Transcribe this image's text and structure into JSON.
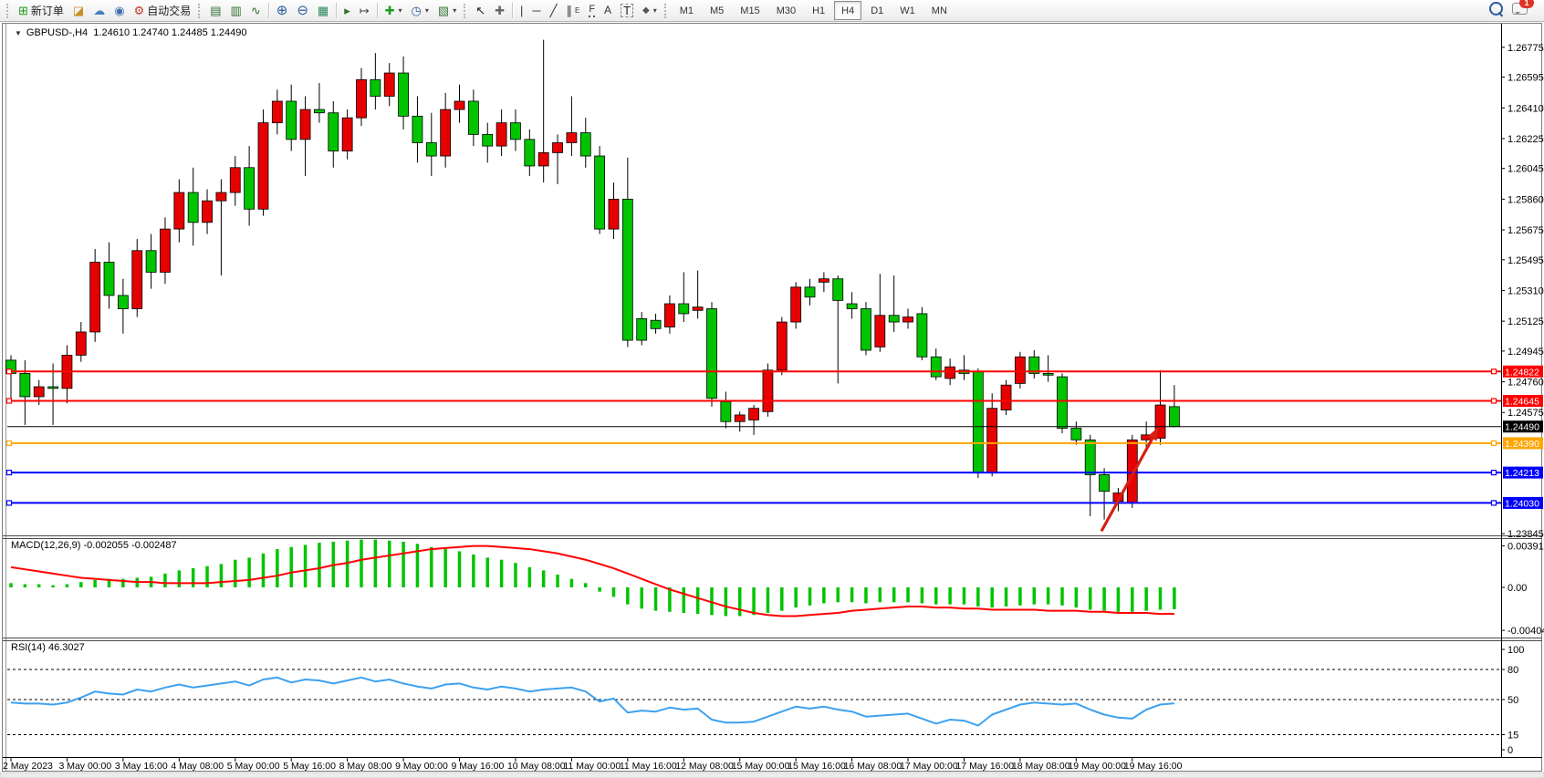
{
  "toolbar": {
    "new_order_label": "新订单",
    "autotrade_label": "自动交易",
    "icons": {
      "new_order": "⊞",
      "styler": "◪",
      "publish": "☁",
      "sound": "◉",
      "autotrade": "⚙",
      "bar_chart": "▤",
      "candle_chart": "▥",
      "line_chart": "∿",
      "zoom_in": "⊕",
      "zoom_out": "⊖",
      "tile_windows": "▦",
      "auto_scroll": "▸",
      "chart_shift": "↦",
      "indicators": "✚",
      "periods": "◷",
      "templates": "▧",
      "cursor": "↖",
      "crosshair": "✚",
      "vline": "|",
      "hline": "─",
      "trendline": "╱",
      "channel": "∥",
      "channel_sub": "E",
      "fibonacci": "F",
      "text": "A",
      "label": "T",
      "shapes": "◆",
      "caret": "▾"
    },
    "timeframes": [
      "M1",
      "M5",
      "M15",
      "M30",
      "H1",
      "H4",
      "D1",
      "W1",
      "MN"
    ],
    "active_timeframe": "H4",
    "notification_count": "1"
  },
  "chart": {
    "symbol_title": "GBPUSD-,H4",
    "title_ohlc": "1.24610 1.24740 1.24485 1.24490",
    "collapse_glyph": "▼"
  },
  "indicators": {
    "macd_name": "MACD(12,26,9)",
    "macd_values": "-0.002055 -0.002487",
    "rsi_name": "RSI(14)",
    "rsi_value": "46.3027"
  },
  "colors": {
    "bull": "#e60000",
    "bear": "#00c400",
    "wick": "#000000",
    "level_red": "#ff0000",
    "level_blue": "#0000ff",
    "level_orange": "#ffa500",
    "bid_line": "#000000",
    "macd_hist": "#00c400",
    "macd_signal": "#ff0000",
    "rsi_line": "#3da1f0",
    "arrow": "#d81e10"
  },
  "chart_data": [
    {
      "type": "candlestick",
      "title": "GBPUSD-,H4",
      "last_ohlc": [
        1.2461,
        1.2474,
        1.24485,
        1.2449
      ],
      "ylim": [
        1.2384,
        1.2684
      ],
      "up_color": "#e60000",
      "down_color": "#00c400",
      "y_ticks": [
        "1.26775",
        "1.26595",
        "1.26410",
        "1.26225",
        "1.26045",
        "1.25860",
        "1.25675",
        "1.25495",
        "1.25310",
        "1.25125",
        "1.24945",
        "1.24760",
        "1.24575",
        "1.23845"
      ],
      "x_tick_every": 4,
      "x_tick_labels": [
        "2 May 2023",
        "3 May 00:00",
        "3 May 16:00",
        "4 May 08:00",
        "5 May 00:00",
        "5 May 16:00",
        "8 May 08:00",
        "9 May 00:00",
        "9 May 16:00",
        "10 May 08:00",
        "11 May 00:00",
        "11 May 16:00",
        "12 May 08:00",
        "15 May 00:00",
        "15 May 16:00",
        "16 May 08:00",
        "17 May 00:00",
        "17 May 16:00",
        "18 May 08:00",
        "19 May 00:00",
        "19 May 16:00"
      ],
      "levels": [
        {
          "price": 1.24822,
          "label": "1.24822",
          "color": "#ff0000",
          "width": 2
        },
        {
          "price": 1.24645,
          "label": "1.24645",
          "color": "#ff0000",
          "width": 2
        },
        {
          "price": 1.2449,
          "label": "1.24490",
          "color": "#000000",
          "width": 1
        },
        {
          "price": 1.2439,
          "label": "1.24390",
          "color": "#ffa500",
          "width": 2
        },
        {
          "price": 1.24213,
          "label": "1.24213",
          "color": "#0000ff",
          "width": 2
        },
        {
          "price": 1.2403,
          "label": "1.24030",
          "color": "#0000ff",
          "width": 2
        }
      ],
      "annotation_arrow": {
        "from": {
          "index": 77.8,
          "price": 1.2386
        },
        "to": {
          "index": 81.9,
          "price": 1.2449
        },
        "color": "#d81e10"
      },
      "candles": [
        [
          1.2489,
          1.2492,
          1.2463,
          1.2481
        ],
        [
          1.2481,
          1.2489,
          1.245,
          1.2467
        ],
        [
          1.2467,
          1.2477,
          1.2462,
          1.2473
        ],
        [
          1.2473,
          1.2487,
          1.245,
          1.2472
        ],
        [
          1.2472,
          1.2498,
          1.2463,
          1.2492
        ],
        [
          1.2492,
          1.2512,
          1.2488,
          1.2506
        ],
        [
          1.2506,
          1.2556,
          1.25,
          1.2548
        ],
        [
          1.2548,
          1.256,
          1.252,
          1.2528
        ],
        [
          1.2528,
          1.2538,
          1.2505,
          1.252
        ],
        [
          1.252,
          1.2562,
          1.2515,
          1.2555
        ],
        [
          1.2555,
          1.2565,
          1.2532,
          1.2542
        ],
        [
          1.2542,
          1.2575,
          1.2535,
          1.2568
        ],
        [
          1.2568,
          1.2598,
          1.256,
          1.259
        ],
        [
          1.259,
          1.2605,
          1.2558,
          1.2572
        ],
        [
          1.2572,
          1.2592,
          1.2565,
          1.2585
        ],
        [
          1.2585,
          1.2598,
          1.254,
          1.259
        ],
        [
          1.259,
          1.2612,
          1.2582,
          1.2605
        ],
        [
          1.2605,
          1.2618,
          1.257,
          1.258
        ],
        [
          1.258,
          1.264,
          1.2576,
          1.2632
        ],
        [
          1.2632,
          1.2652,
          1.2625,
          1.2645
        ],
        [
          1.2645,
          1.2655,
          1.2615,
          1.2622
        ],
        [
          1.2622,
          1.2648,
          1.26,
          1.264
        ],
        [
          1.264,
          1.2656,
          1.2632,
          1.2638
        ],
        [
          1.2638,
          1.2645,
          1.2605,
          1.2615
        ],
        [
          1.2615,
          1.264,
          1.261,
          1.2635
        ],
        [
          1.2635,
          1.2665,
          1.263,
          1.2658
        ],
        [
          1.2658,
          1.2674,
          1.264,
          1.2648
        ],
        [
          1.2648,
          1.2668,
          1.2642,
          1.2662
        ],
        [
          1.2662,
          1.2672,
          1.2628,
          1.2636
        ],
        [
          1.2636,
          1.2648,
          1.2608,
          1.262
        ],
        [
          1.262,
          1.2638,
          1.26,
          1.2612
        ],
        [
          1.2612,
          1.265,
          1.2605,
          1.264
        ],
        [
          1.264,
          1.2655,
          1.2632,
          1.2645
        ],
        [
          1.2645,
          1.2652,
          1.2618,
          1.2625
        ],
        [
          1.2625,
          1.2632,
          1.2608,
          1.2618
        ],
        [
          1.2618,
          1.264,
          1.2612,
          1.2632
        ],
        [
          1.2632,
          1.264,
          1.2615,
          1.2622
        ],
        [
          1.2622,
          1.2628,
          1.26,
          1.2606
        ],
        [
          1.2606,
          1.2682,
          1.2596,
          1.2614
        ],
        [
          1.2614,
          1.2625,
          1.2595,
          1.262
        ],
        [
          1.262,
          1.2648,
          1.2612,
          1.2626
        ],
        [
          1.2626,
          1.2635,
          1.2605,
          1.2612
        ],
        [
          1.2612,
          1.2618,
          1.2565,
          1.2568
        ],
        [
          1.2568,
          1.2596,
          1.2562,
          1.2586
        ],
        [
          1.2586,
          1.2611,
          1.2497,
          1.2501
        ],
        [
          1.2514,
          1.2518,
          1.2498,
          1.2501
        ],
        [
          1.2513,
          1.2517,
          1.2505,
          1.2508
        ],
        [
          1.2509,
          1.2528,
          1.2505,
          1.2523
        ],
        [
          1.2523,
          1.2542,
          1.2512,
          1.2517
        ],
        [
          1.2519,
          1.2543,
          1.2514,
          1.2521
        ],
        [
          1.252,
          1.2524,
          1.2461,
          1.2466
        ],
        [
          1.2464,
          1.247,
          1.2448,
          1.2452
        ],
        [
          1.2452,
          1.2458,
          1.2446,
          1.2456
        ],
        [
          1.2453,
          1.2462,
          1.2444,
          1.246
        ],
        [
          1.2458,
          1.2487,
          1.2455,
          1.2483
        ],
        [
          1.2483,
          1.2515,
          1.248,
          1.2512
        ],
        [
          1.2512,
          1.2536,
          1.2508,
          1.2533
        ],
        [
          1.2533,
          1.2538,
          1.2522,
          1.2527
        ],
        [
          1.2536,
          1.2542,
          1.253,
          1.2538
        ],
        [
          1.2538,
          1.254,
          1.2475,
          1.2525
        ],
        [
          1.2523,
          1.253,
          1.2514,
          1.252
        ],
        [
          1.252,
          1.2524,
          1.2492,
          1.2495
        ],
        [
          1.2497,
          1.2541,
          1.2494,
          1.2516
        ],
        [
          1.2516,
          1.254,
          1.2506,
          1.2512
        ],
        [
          1.2512,
          1.252,
          1.2508,
          1.2515
        ],
        [
          1.2517,
          1.2521,
          1.2489,
          1.2491
        ],
        [
          1.2491,
          1.2496,
          1.2477,
          1.2479
        ],
        [
          1.2478,
          1.249,
          1.2474,
          1.2485
        ],
        [
          1.2483,
          1.2492,
          1.2477,
          1.2481
        ],
        [
          1.2482,
          1.2484,
          1.2418,
          1.2421
        ],
        [
          1.2421,
          1.2469,
          1.2419,
          1.246
        ],
        [
          1.2459,
          1.2477,
          1.2456,
          1.2474
        ],
        [
          1.2475,
          1.2494,
          1.2472,
          1.2491
        ],
        [
          1.2491,
          1.2495,
          1.2478,
          1.2481
        ],
        [
          1.2481,
          1.2492,
          1.2476,
          1.248
        ],
        [
          1.2479,
          1.2481,
          1.2445,
          1.2448
        ],
        [
          1.2448,
          1.2452,
          1.2438,
          1.2441
        ],
        [
          1.2441,
          1.2444,
          1.2395,
          1.242
        ],
        [
          1.242,
          1.2424,
          1.2393,
          1.241
        ],
        [
          1.2404,
          1.2412,
          1.2398,
          1.2409
        ],
        [
          1.2403,
          1.2444,
          1.24,
          1.2441
        ],
        [
          1.2441,
          1.2452,
          1.2436,
          1.2444
        ],
        [
          1.2442,
          1.2483,
          1.2438,
          1.2462
        ],
        [
          1.2461,
          1.2474,
          1.24485,
          1.2449
        ]
      ]
    },
    {
      "type": "macd",
      "title": "MACD(12,26,9)",
      "current_values": [
        -0.002055,
        -0.002487
      ],
      "histogram_color": "#00c400",
      "signal_color": "#ff0000",
      "y_axis_labels": [
        "0.003914",
        "0.00",
        "-0.004049"
      ],
      "ylim": [
        -0.00455,
        0.00455
      ],
      "histogram": [
        0.0004,
        0.0003,
        0.0003,
        0.0002,
        0.0003,
        0.0005,
        0.0007,
        0.0008,
        0.0008,
        0.0009,
        0.001,
        0.0013,
        0.0016,
        0.0018,
        0.002,
        0.0022,
        0.0026,
        0.0028,
        0.0032,
        0.0036,
        0.0038,
        0.004,
        0.0042,
        0.0043,
        0.0044,
        0.0045,
        0.0045,
        0.0044,
        0.0043,
        0.0041,
        0.0038,
        0.0036,
        0.0034,
        0.0031,
        0.0028,
        0.0026,
        0.0023,
        0.0019,
        0.0016,
        0.0012,
        0.0008,
        0.0004,
        -0.0004,
        -0.0009,
        -0.0016,
        -0.002,
        -0.0022,
        -0.0023,
        -0.0024,
        -0.0025,
        -0.0026,
        -0.0027,
        -0.0027,
        -0.0026,
        -0.0024,
        -0.0022,
        -0.0019,
        -0.0017,
        -0.0015,
        -0.0014,
        -0.0014,
        -0.0015,
        -0.0014,
        -0.0014,
        -0.0014,
        -0.0015,
        -0.0016,
        -0.0016,
        -0.0016,
        -0.0018,
        -0.0019,
        -0.0018,
        -0.0017,
        -0.0016,
        -0.0016,
        -0.0017,
        -0.0019,
        -0.0021,
        -0.0022,
        -0.0023,
        -0.0023,
        -0.0022,
        -0.0021,
        -0.002055
      ],
      "signal": [
        0.0019,
        0.0017,
        0.0015,
        0.0013,
        0.0011,
        0.0009,
        0.0008,
        0.0007,
        0.0006,
        0.0005,
        0.0005,
        0.0004,
        0.0004,
        0.0004,
        0.0004,
        0.0005,
        0.0006,
        0.0007,
        0.0009,
        0.0011,
        0.0014,
        0.0016,
        0.0018,
        0.0021,
        0.0023,
        0.0026,
        0.0028,
        0.003,
        0.0032,
        0.0034,
        0.0036,
        0.0037,
        0.0038,
        0.0039,
        0.0039,
        0.0038,
        0.0037,
        0.0036,
        0.0034,
        0.0032,
        0.0029,
        0.0026,
        0.0022,
        0.0018,
        0.0013,
        0.0008,
        0.0003,
        -0.0002,
        -0.0006,
        -0.001,
        -0.0014,
        -0.0018,
        -0.0021,
        -0.0024,
        -0.0026,
        -0.0027,
        -0.0027,
        -0.0026,
        -0.0025,
        -0.0024,
        -0.0022,
        -0.0021,
        -0.002,
        -0.0019,
        -0.0018,
        -0.0018,
        -0.0019,
        -0.0019,
        -0.002,
        -0.002,
        -0.0021,
        -0.0021,
        -0.0021,
        -0.0021,
        -0.0022,
        -0.0022,
        -0.0022,
        -0.0023,
        -0.0023,
        -0.0024,
        -0.0024,
        -0.0024,
        -0.0025,
        -0.002487
      ]
    },
    {
      "type": "line",
      "title": "RSI(14)",
      "current_value": 46.3027,
      "line_color": "#3da1f0",
      "ylim": [
        0,
        100
      ],
      "dashed_levels": [
        80,
        50,
        15
      ],
      "y_axis_labels": [
        "100",
        "80",
        "50",
        "15",
        "0"
      ],
      "values": [
        47,
        46,
        46,
        45,
        47,
        52,
        58,
        56,
        55,
        60,
        58,
        62,
        65,
        62,
        64,
        66,
        68,
        64,
        70,
        72,
        67,
        70,
        69,
        66,
        69,
        72,
        68,
        70,
        66,
        63,
        61,
        65,
        66,
        62,
        60,
        63,
        61,
        58,
        60,
        61,
        62,
        58,
        48,
        51,
        37,
        39,
        38,
        42,
        40,
        41,
        30,
        27,
        27,
        28,
        33,
        38,
        43,
        41,
        43,
        40,
        38,
        33,
        34,
        35,
        36,
        31,
        26,
        30,
        29,
        24,
        35,
        40,
        45,
        47,
        46,
        45,
        46,
        40,
        35,
        32,
        31,
        40,
        45,
        46.3027
      ]
    }
  ]
}
